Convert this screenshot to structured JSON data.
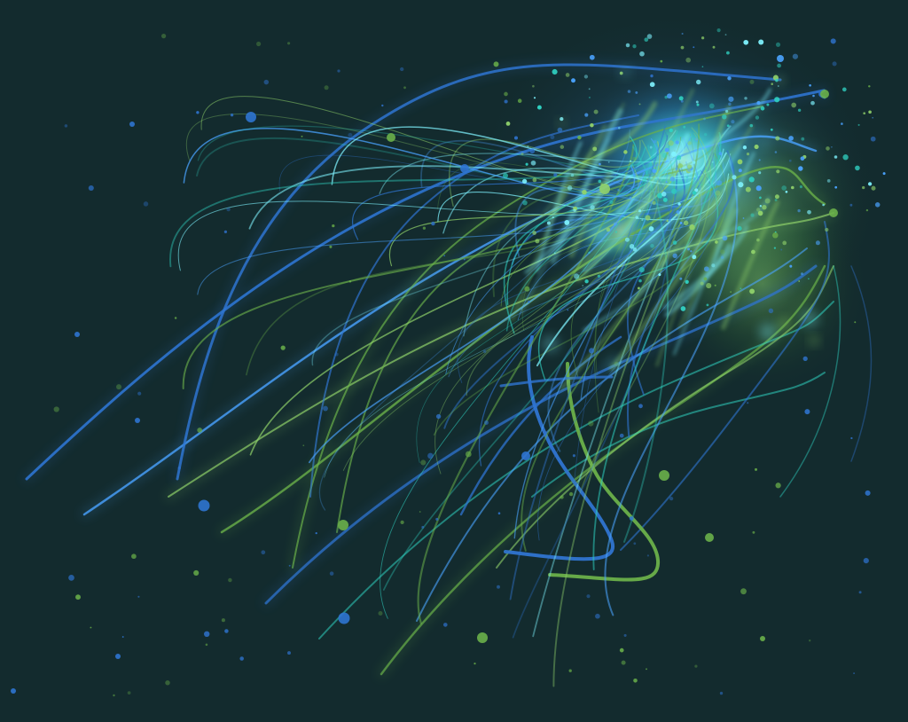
{
  "scene": {
    "subject": "light-trail-strokes",
    "background_color": "#132b2e",
    "palette": {
      "blue": "#2f74d0",
      "blue_light": "#4aa3ff",
      "green": "#6ab04a",
      "green_light": "#8fd06a",
      "cyan_glow": "#7ff3ff",
      "teal": "#2fd0c0"
    }
  }
}
